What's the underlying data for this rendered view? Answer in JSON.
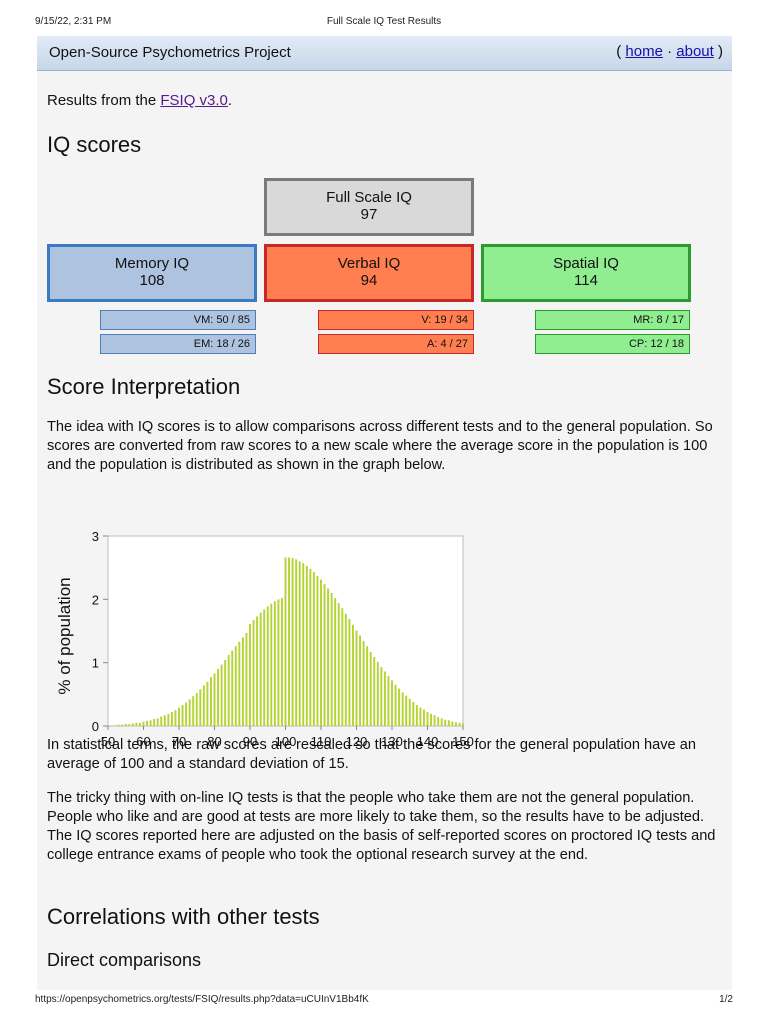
{
  "print": {
    "date": "9/15/22, 2:31 PM",
    "doc_title": "Full Scale IQ Test Results",
    "url": "https://openpsychometrics.org/tests/FSIQ/results.php?data=uCUInV1Bb4fK",
    "page": "1/2"
  },
  "site": {
    "title": "Open-Source Psychometrics Project",
    "nav_open": "( ",
    "home": "home",
    "sep": " · ",
    "about": "about",
    "nav_close": " )"
  },
  "intro": {
    "prefix": "Results from the ",
    "link": "FSIQ v3.0",
    "suffix": "."
  },
  "iq_heading": "IQ scores",
  "scores": {
    "full": {
      "label": "Full Scale IQ",
      "value": "97"
    },
    "memory": {
      "label": "Memory IQ",
      "value": "108",
      "subs": [
        "VM: 50 / 85",
        "EM: 18 / 26"
      ]
    },
    "verbal": {
      "label": "Verbal IQ",
      "value": "94",
      "subs": [
        "V: 19 / 34",
        "A: 4 / 27"
      ]
    },
    "spatial": {
      "label": "Spatial IQ",
      "value": "114",
      "subs": [
        "MR: 8 / 17",
        "CP: 12 / 18"
      ]
    }
  },
  "interp_heading": "Score Interpretation",
  "para1": "The idea with IQ scores is to allow comparisons across different tests and to the general population. So scores are converted from raw scores to a new scale where the average score in the population is 100 and the population is distributed as shown in the graph below.",
  "para2": "In statistical terms, the raw scores are rescaled so that the scores for the general population have an average of 100 and a standard deviation of 15.",
  "para3": "The tricky thing with on-line IQ tests is that the people who take them are not the general population. People who like and are good at tests are more likely to take them, so the results have to be adjusted. The IQ scores reported here are adjusted on the basis of self-reported scores on proctored IQ tests and college entrance exams of people who took the optional research survey at the end.",
  "corr_heading": "Correlations with other tests",
  "direct_heading": "Direct comparisons",
  "colors": {
    "bar": "#b5d334",
    "grid": "#cfcfcf"
  },
  "chart_data": {
    "type": "bar",
    "title": "",
    "xlabel": "",
    "ylabel": "% of population",
    "xlim": [
      50,
      150
    ],
    "ylim": [
      0,
      3
    ],
    "xticks": [
      50,
      60,
      70,
      80,
      90,
      100,
      110,
      120,
      130,
      140,
      150
    ],
    "yticks": [
      0,
      1,
      2,
      3
    ],
    "grid": false,
    "distribution": {
      "mean": 100,
      "sd": 15
    },
    "x": [
      50,
      51,
      52,
      53,
      54,
      55,
      56,
      57,
      58,
      59,
      60,
      61,
      62,
      63,
      64,
      65,
      66,
      67,
      68,
      69,
      70,
      71,
      72,
      73,
      74,
      75,
      76,
      77,
      78,
      79,
      80,
      81,
      82,
      83,
      84,
      85,
      86,
      87,
      88,
      89,
      90,
      91,
      92,
      93,
      94,
      95,
      96,
      97,
      98,
      99,
      100,
      101,
      102,
      103,
      104,
      105,
      106,
      107,
      108,
      109,
      110,
      111,
      112,
      113,
      114,
      115,
      116,
      117,
      118,
      119,
      120,
      121,
      122,
      123,
      124,
      125,
      126,
      127,
      128,
      129,
      130,
      131,
      132,
      133,
      134,
      135,
      136,
      137,
      138,
      139,
      140,
      141,
      142,
      143,
      144,
      145,
      146,
      147,
      148,
      149,
      150
    ],
    "values": [
      0.01,
      0.01,
      0.01,
      0.02,
      0.02,
      0.03,
      0.03,
      0.04,
      0.05,
      0.05,
      0.07,
      0.08,
      0.09,
      0.11,
      0.12,
      0.15,
      0.17,
      0.19,
      0.22,
      0.25,
      0.29,
      0.33,
      0.37,
      0.42,
      0.47,
      0.52,
      0.58,
      0.64,
      0.7,
      0.77,
      0.83,
      0.9,
      0.97,
      1.04,
      1.12,
      1.19,
      1.26,
      1.33,
      1.4,
      1.47,
      1.61,
      1.67,
      1.73,
      1.79,
      1.84,
      1.89,
      1.93,
      1.97,
      2.0,
      2.02,
      2.66,
      2.66,
      2.65,
      2.63,
      2.6,
      2.57,
      2.53,
      2.48,
      2.43,
      2.37,
      2.31,
      2.24,
      2.17,
      2.1,
      2.02,
      1.94,
      1.86,
      1.77,
      1.69,
      1.6,
      1.51,
      1.43,
      1.34,
      1.26,
      1.17,
      1.09,
      1.01,
      0.93,
      0.86,
      0.79,
      0.72,
      0.65,
      0.59,
      0.53,
      0.48,
      0.43,
      0.38,
      0.33,
      0.29,
      0.26,
      0.22,
      0.19,
      0.17,
      0.14,
      0.12,
      0.1,
      0.09,
      0.07,
      0.06,
      0.05,
      0.04
    ]
  }
}
